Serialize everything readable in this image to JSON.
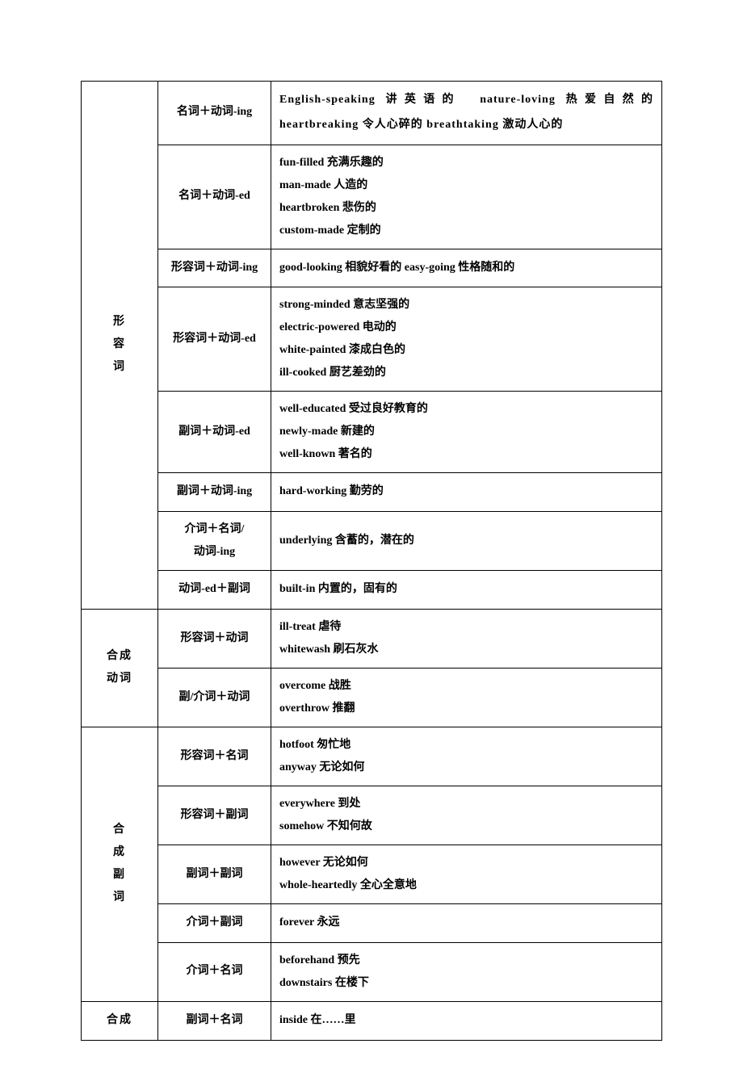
{
  "table": {
    "rows": [
      {
        "cat": "形\n容\n词",
        "cat_rowspan": 8,
        "pattern": "名词＋动词-ing",
        "examples": "English-speaking 讲英语的　nature-loving 热爱自然的 heartbreaking 令人心碎的 breathtaking 激动人心的",
        "spread": true
      },
      {
        "pattern": "名词＋动词-ed",
        "examples": "fun-filled 充满乐趣的\nman-made 人造的\nheartbroken 悲伤的\ncustom-made 定制的"
      },
      {
        "pattern": "形容词＋动词-ing",
        "examples": "good-looking 相貌好看的 easy-going 性格随和的"
      },
      {
        "pattern": "形容词＋动词-ed",
        "examples": "strong-minded 意志坚强的\nelectric-powered 电动的\nwhite-painted 漆成白色的\nill-cooked 厨艺差劲的"
      },
      {
        "pattern": "副词＋动词-ed",
        "examples": "well-educated 受过良好教育的\nnewly-made 新建的\nwell-known 著名的"
      },
      {
        "pattern": "副词＋动词-ing",
        "examples": "hard-working 勤劳的"
      },
      {
        "pattern": "介词＋名词/\n动词-ing",
        "examples": "underlying 含蓄的，潜在的"
      },
      {
        "pattern": "动词-ed＋副词",
        "examples": "built-in 内置的，固有的"
      },
      {
        "cat": "合成\n动词",
        "cat_rowspan": 2,
        "pattern": "形容词＋动词",
        "examples": "ill-treat 虐待\nwhitewash 刷石灰水"
      },
      {
        "pattern": "副/介词＋动词",
        "examples": "overcome 战胜\noverthrow 推翻"
      },
      {
        "cat": "合\n成\n副\n词",
        "cat_rowspan": 5,
        "pattern": "形容词＋名词",
        "examples": "hotfoot 匆忙地\nanyway 无论如何"
      },
      {
        "pattern": "形容词＋副词",
        "examples": "everywhere 到处\nsomehow 不知何故"
      },
      {
        "pattern": "副词＋副词",
        "examples": "however 无论如何\nwhole-heartedly 全心全意地"
      },
      {
        "pattern": "介词＋副词",
        "examples": "forever 永远"
      },
      {
        "pattern": "介词＋名词",
        "examples": "beforehand 预先\ndownstairs 在楼下"
      },
      {
        "cat": "合成",
        "cat_rowspan": 1,
        "pattern": "副词＋名词",
        "examples": "inside 在……里"
      }
    ]
  }
}
